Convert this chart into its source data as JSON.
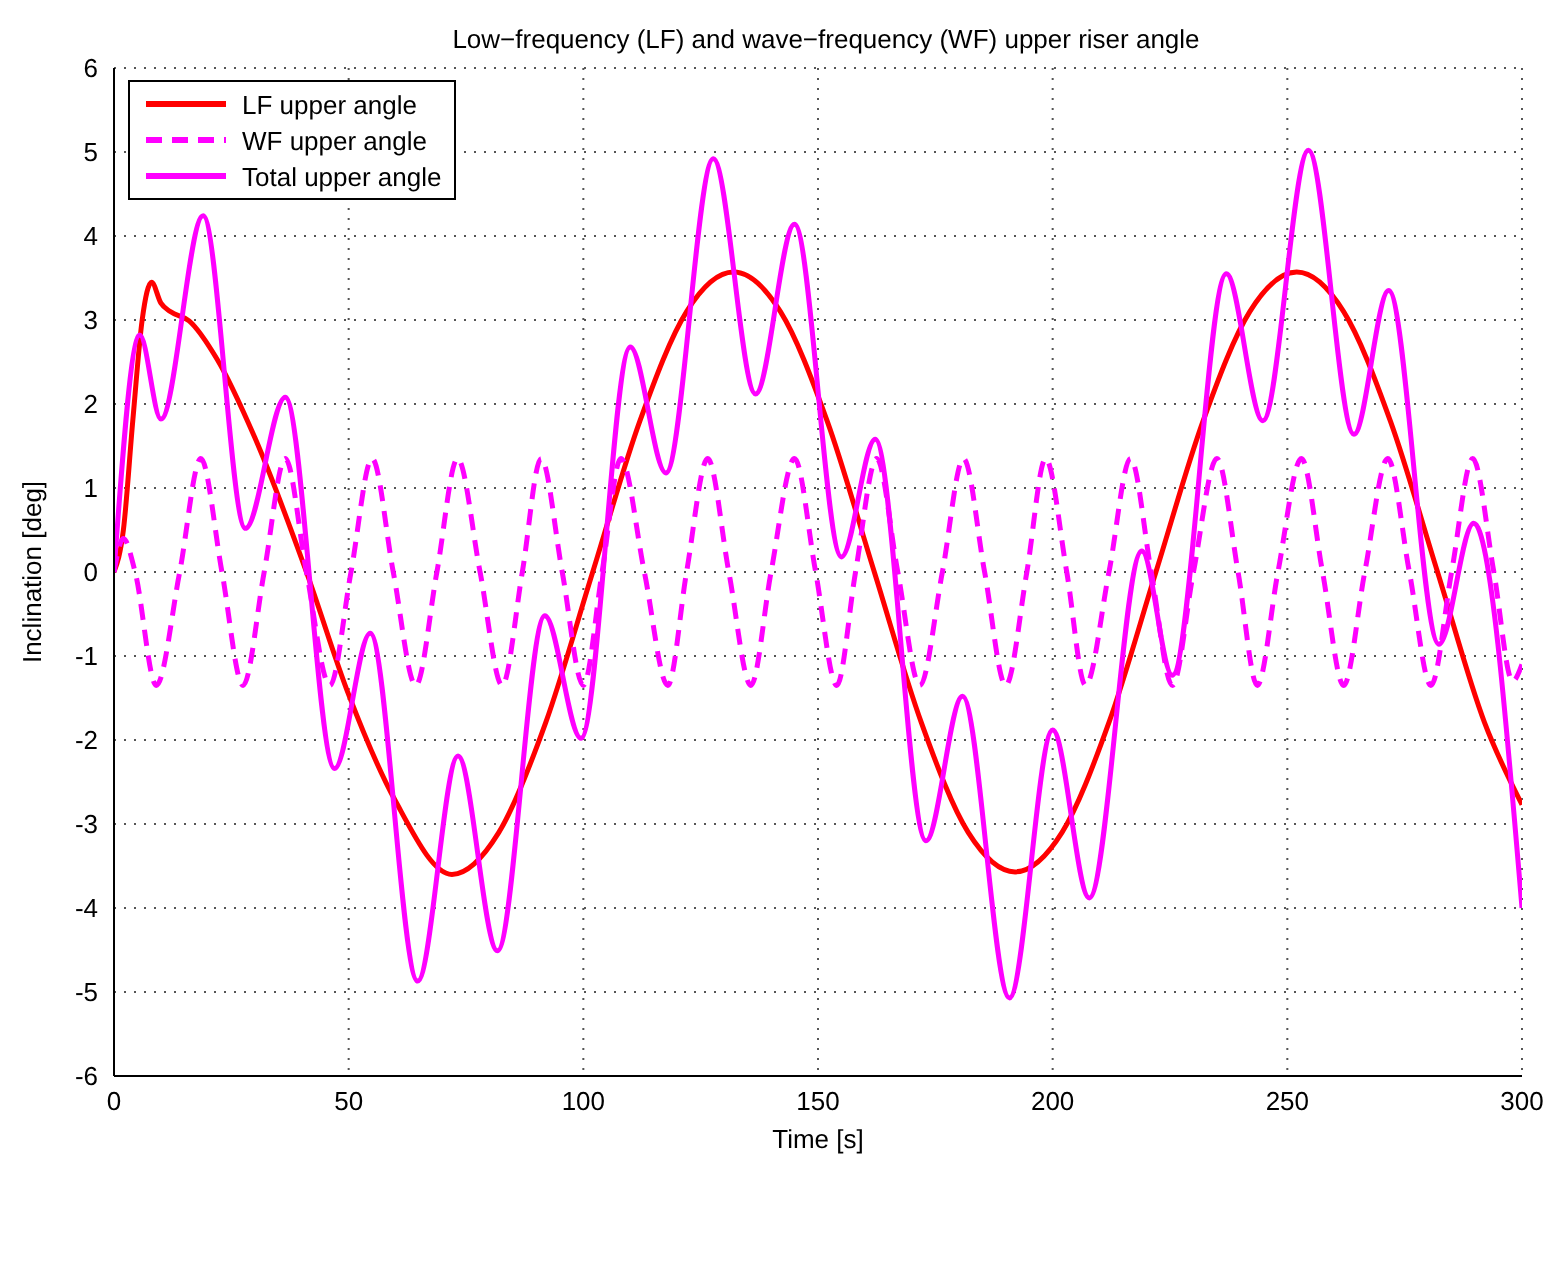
{
  "chart_data": {
    "type": "line",
    "title": "Low−frequency (LF) and wave−frequency (WF) upper riser angle",
    "xlabel": "Time [s]",
    "ylabel": "Inclination [deg]",
    "xlim": [
      0,
      300
    ],
    "xticks": [
      0,
      50,
      100,
      150,
      200,
      250,
      300
    ],
    "ylim": [
      -6,
      6
    ],
    "yticks": [
      -6,
      -5,
      -4,
      -3,
      -2,
      -1,
      0,
      1,
      2,
      3,
      4,
      5,
      6
    ],
    "grid": true,
    "legend": "top left",
    "marker": "none",
    "series": [
      {
        "name": "LF upper angle",
        "color": "#ff0000",
        "line_style": "solid",
        "x": [
          0,
          2,
          4,
          6,
          8,
          10,
          12,
          16,
          22,
          30,
          41,
          50,
          60,
          72,
          82,
          92,
          102,
          112,
          122,
          132,
          142,
          152,
          162,
          172,
          182,
          192,
          202,
          212,
          222,
          232,
          242,
          252,
          262,
          272,
          282,
          292,
          300
        ],
        "values": [
          0,
          0.5,
          1.8,
          3,
          3.45,
          3.2,
          3.1,
          2.99,
          2.53,
          1.6,
          0,
          -1.46,
          -2.73,
          -3.6,
          -3.1,
          -1.79,
          0,
          1.79,
          3.1,
          3.57,
          3.1,
          1.79,
          0,
          -1.79,
          -3.1,
          -3.57,
          -3.1,
          -1.79,
          0,
          1.79,
          3.1,
          3.57,
          3.1,
          1.79,
          0,
          -1.79,
          -2.77
        ]
      },
      {
        "name": "WF upper angle",
        "color": "#ff00ff",
        "line_style": "dashed",
        "x": [
          0,
          2,
          4.5,
          9,
          14,
          18.5,
          23,
          27.5,
          32,
          36.5,
          41,
          46,
          50.5,
          55,
          59.5,
          64.3,
          68.8,
          73.2,
          78,
          82.7,
          87,
          91,
          95.5,
          100,
          104,
          108,
          113,
          118,
          122,
          126.5,
          131,
          135.7,
          140,
          145,
          149.5,
          154,
          158,
          162.5,
          167,
          171.7,
          176.5,
          181,
          185.5,
          190,
          194.5,
          198.5,
          203,
          207,
          212,
          216.6,
          221,
          225.5,
          230,
          235,
          239.5,
          243.6,
          248,
          253,
          257.5,
          262,
          266.5,
          271.4,
          276,
          280.6,
          285,
          289.5,
          294,
          298,
          300
        ],
        "values": [
          0,
          0.4,
          0,
          -1.35,
          0,
          1.35,
          0,
          -1.35,
          0,
          1.35,
          0,
          -1.35,
          0,
          1.35,
          0,
          -1.35,
          0,
          1.35,
          0,
          -1.35,
          0,
          1.35,
          0,
          -1.35,
          0,
          1.35,
          0,
          -1.35,
          0,
          1.35,
          0,
          -1.35,
          0,
          1.35,
          0,
          -1.35,
          0,
          1.35,
          0,
          -1.35,
          0,
          1.35,
          0,
          -1.35,
          0,
          1.35,
          0,
          -1.35,
          0,
          1.35,
          0,
          -1.35,
          0,
          1.35,
          0,
          -1.35,
          0,
          1.35,
          0,
          -1.35,
          0,
          1.35,
          0,
          -1.35,
          0,
          1.35,
          0,
          -1.3,
          -1.1
        ]
      },
      {
        "name": "Total upper angle",
        "color": "#ff00ff",
        "line_style": "solid",
        "x": [
          0,
          5.5,
          10,
          19,
          28,
          36.5,
          47,
          54.6,
          64.7,
          73.3,
          81.7,
          91.8,
          99.5,
          110,
          117.6,
          127.7,
          136.7,
          145,
          155,
          162.2,
          173,
          180.8,
          190.8,
          200,
          207.8,
          219,
          225.5,
          237,
          244.8,
          254.5,
          264.2,
          271.6,
          282.3,
          289.7,
          300
        ],
        "values": [
          0,
          2.82,
          1.82,
          4.24,
          0.52,
          2.08,
          -2.34,
          -0.73,
          -4.87,
          -2.19,
          -4.51,
          -0.52,
          -1.98,
          2.68,
          1.18,
          4.92,
          2.12,
          4.14,
          0.18,
          1.58,
          -3.2,
          -1.48,
          -5.07,
          -1.88,
          -3.88,
          0.25,
          -1.23,
          3.55,
          1.8,
          5.02,
          1.64,
          3.35,
          -0.86,
          0.58,
          -4.0
        ]
      }
    ]
  }
}
